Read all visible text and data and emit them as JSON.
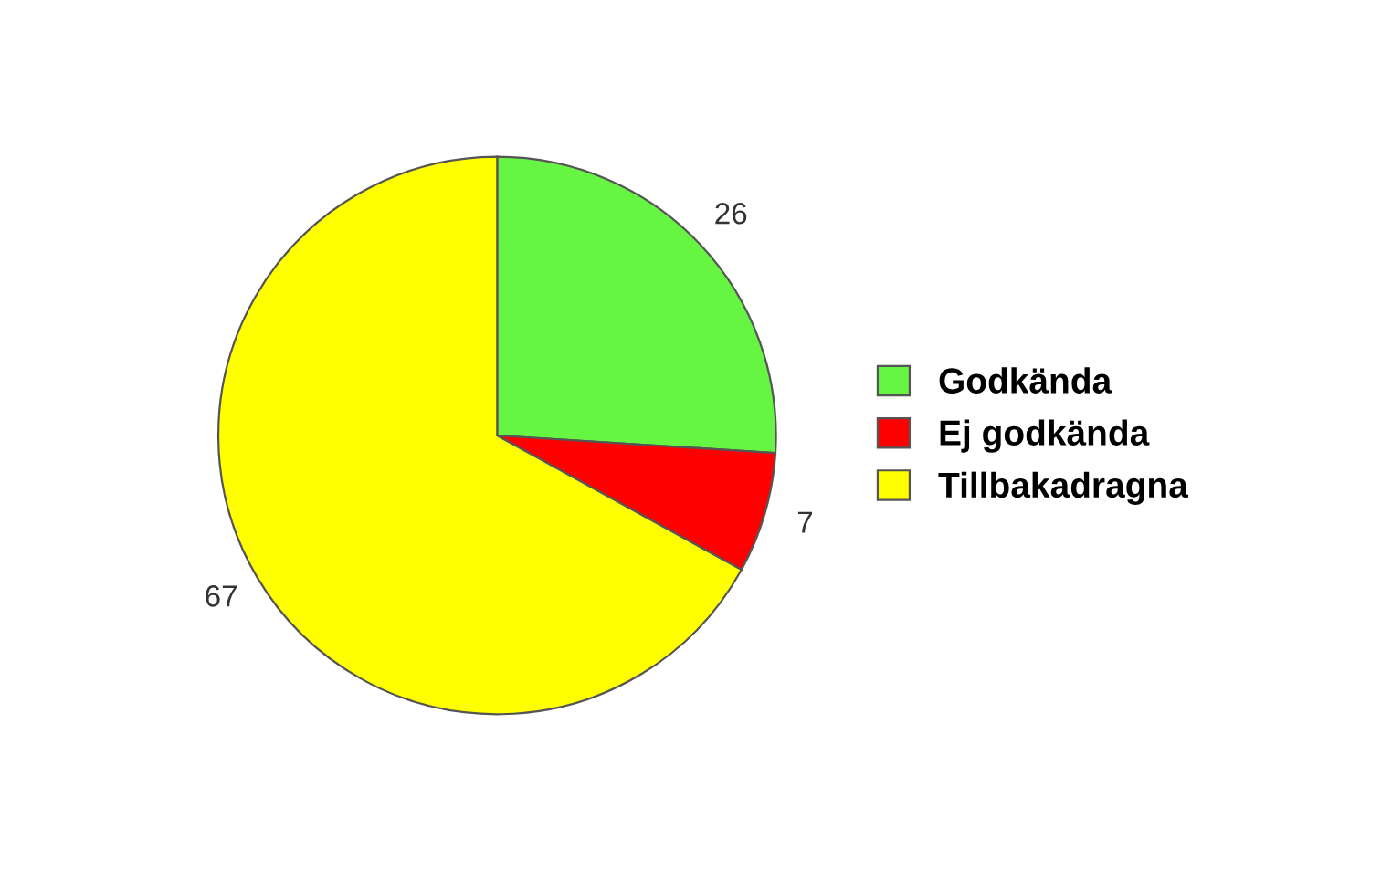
{
  "chart_data": {
    "type": "pie",
    "categories": [
      "Godkända",
      "Ej godkända",
      "Tillbakadragna"
    ],
    "values": [
      26,
      7,
      67
    ],
    "colors": [
      "#66f542",
      "#ff0000",
      "#ffff00"
    ],
    "data_labels": true,
    "legend": "right"
  }
}
